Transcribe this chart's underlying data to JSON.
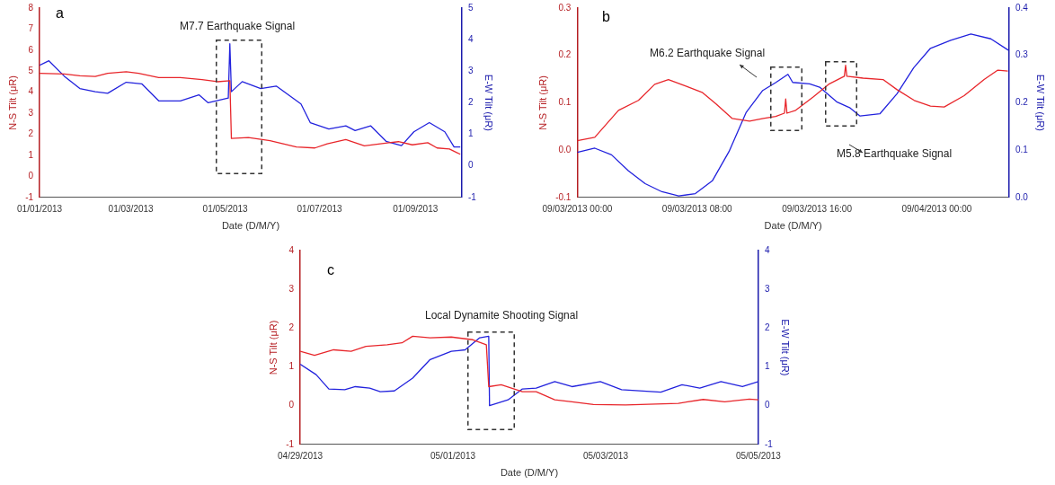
{
  "chart_data": [
    {
      "type": "line",
      "title": "a",
      "xlabel": "Date (D/M/Y)",
      "ylabel": "N-S Tilt (μR)",
      "y2label": "E-W Tilt (μR)",
      "annotations": [
        "M7.7 Earthquake Signal"
      ],
      "grid": false,
      "legend": false,
      "marker": "none",
      "xlim": [
        "2013-01-01",
        "2013-10-01"
      ],
      "xticks": [
        {
          "value": "2013-01-01",
          "label": "01/01/2013"
        },
        {
          "value": "2013-03-01",
          "label": "01/03/2013"
        },
        {
          "value": "2013-05-01",
          "label": "01/05/2013"
        },
        {
          "value": "2013-07-01",
          "label": "01/07/2013"
        },
        {
          "value": "2013-09-01",
          "label": "01/09/2013"
        }
      ],
      "ylim": [
        -1,
        8
      ],
      "yticks": [
        -1,
        0,
        1,
        2,
        3,
        4,
        5,
        6,
        7,
        8
      ],
      "y2lim": [
        -1,
        5
      ],
      "y2ticks": [
        -1,
        0,
        1,
        2,
        3,
        4,
        5
      ],
      "series": [
        {
          "color": "#e8262b",
          "x": [
            "2013-01-01",
            "2013-01-17",
            "2013-01-27",
            "2013-02-06",
            "2013-02-14",
            "2013-02-26",
            "2013-03-06",
            "2013-03-19",
            "2013-04-02",
            "2013-04-16",
            "2013-04-26",
            "2013-05-04",
            "2013-05-05",
            "2013-05-16",
            "2013-05-30",
            "2013-06-16",
            "2013-06-28",
            "2013-07-06",
            "2013-07-18",
            "2013-07-30",
            "2013-08-15",
            "2013-08-21",
            "2013-08-30",
            "2013-09-09",
            "2013-09-15",
            "2013-09-23",
            "2013-09-30"
          ],
          "values": [
            4.9,
            4.87,
            4.78,
            4.75,
            4.9,
            4.97,
            4.9,
            4.7,
            4.7,
            4.6,
            4.5,
            4.55,
            1.8,
            1.85,
            1.7,
            1.4,
            1.35,
            1.55,
            1.75,
            1.45,
            1.6,
            1.65,
            1.5,
            1.6,
            1.35,
            1.3,
            1.05
          ]
        },
        {
          "color": "#2222dd",
          "axis": "y2",
          "x": [
            "2013-01-01",
            "2013-01-07",
            "2013-01-17",
            "2013-01-27",
            "2013-02-06",
            "2013-02-14",
            "2013-02-26",
            "2013-03-08",
            "2013-03-19",
            "2013-04-02",
            "2013-04-14",
            "2013-04-20",
            "2013-05-03",
            "2013-05-04",
            "2013-05-05",
            "2013-05-12",
            "2013-05-24",
            "2013-06-03",
            "2013-06-19",
            "2013-06-25",
            "2013-07-07",
            "2013-07-18",
            "2013-07-24",
            "2013-08-03",
            "2013-08-13",
            "2013-08-23",
            "2013-08-31",
            "2013-09-10",
            "2013-09-20",
            "2013-09-26",
            "2013-09-30"
          ],
          "values": [
            3.19,
            3.33,
            2.84,
            2.45,
            2.35,
            2.3,
            2.65,
            2.6,
            2.06,
            2.06,
            2.25,
            2.0,
            2.15,
            3.87,
            2.35,
            2.67,
            2.45,
            2.53,
            1.96,
            1.37,
            1.17,
            1.27,
            1.12,
            1.27,
            0.78,
            0.64,
            1.08,
            1.37,
            1.08,
            0.6,
            0.6
          ]
        }
      ]
    },
    {
      "type": "line",
      "title": "b",
      "xlabel": "Date (D/M/Y)",
      "ylabel": "N-S Tilt (μR)",
      "y2label": "E-W Tilt (μR)",
      "annotations": [
        "M6.2 Earthquake Signal",
        "M5.8 Earthquake Signal"
      ],
      "grid": false,
      "legend": false,
      "marker": "none",
      "xlim": [
        "2013-09-03T00:00",
        "2013-09-04T04:50"
      ],
      "xticks": [
        {
          "value": "2013-09-03T00:00",
          "label": "09/03/2013 00:00"
        },
        {
          "value": "2013-09-03T08:00",
          "label": "09/03/2013 08:00"
        },
        {
          "value": "2013-09-03T16:00",
          "label": "09/03/2013 16:00"
        },
        {
          "value": "2013-09-04T00:00",
          "label": "09/04/2013 00:00"
        }
      ],
      "ylim": [
        -0.1,
        0.3
      ],
      "yticks": [
        -0.1,
        {
          "value": 0,
          "label": "0.0"
        },
        0.1,
        0.2,
        0.3
      ],
      "y2lim": [
        0,
        0.4
      ],
      "y2ticks": [
        {
          "value": 0,
          "label": "0.0"
        },
        0.1,
        0.2,
        0.3,
        0.4
      ],
      "series": [
        {
          "color": "#e8262b",
          "x": [
            "2013-09-03T00:00",
            "2013-09-03T01:10",
            "2013-09-03T02:45",
            "2013-09-03T04:05",
            "2013-09-03T05:10",
            "2013-09-03T06:05",
            "2013-09-03T07:15",
            "2013-09-03T08:20",
            "2013-09-03T09:15",
            "2013-09-03T10:20",
            "2013-09-03T11:30",
            "2013-09-03T12:25",
            "2013-09-03T13:15",
            "2013-09-03T13:50",
            "2013-09-03T13:55",
            "2013-09-03T14:00",
            "2013-09-03T14:35",
            "2013-09-03T15:45",
            "2013-09-03T16:50",
            "2013-09-03T17:50",
            "2013-09-03T17:55",
            "2013-09-03T18:00",
            "2013-09-03T19:05",
            "2013-09-03T20:25",
            "2013-09-03T21:20",
            "2013-09-03T22:30",
            "2013-09-03T23:35",
            "2013-09-04T00:30",
            "2013-09-04T01:50",
            "2013-09-04T03:10",
            "2013-09-04T04:05",
            "2013-09-04T04:45"
          ],
          "values": [
            0.02,
            0.027,
            0.084,
            0.105,
            0.139,
            0.149,
            0.135,
            0.122,
            0.098,
            0.067,
            0.061,
            0.067,
            0.071,
            0.078,
            0.108,
            0.078,
            0.084,
            0.112,
            0.14,
            0.156,
            0.179,
            0.156,
            0.152,
            0.149,
            0.128,
            0.105,
            0.093,
            0.091,
            0.115,
            0.149,
            0.169,
            0.167
          ]
        },
        {
          "color": "#2222dd",
          "axis": "y2",
          "x": [
            "2013-09-03T00:00",
            "2013-09-03T01:10",
            "2013-09-03T02:17",
            "2013-09-03T03:25",
            "2013-09-03T04:32",
            "2013-09-03T05:39",
            "2013-09-03T06:46",
            "2013-09-03T07:53",
            "2013-09-03T09:01",
            "2013-09-03T10:08",
            "2013-09-03T11:16",
            "2013-09-03T12:23",
            "2013-09-03T13:16",
            "2013-09-03T14:04",
            "2013-09-03T14:23",
            "2013-09-03T15:31",
            "2013-09-03T16:11",
            "2013-09-03T17:19",
            "2013-09-03T18:13",
            "2013-09-03T18:53",
            "2013-09-03T20:13",
            "2013-09-03T21:21",
            "2013-09-03T22:28",
            "2013-09-03T23:35",
            "2013-09-04T00:56",
            "2013-09-04T02:17",
            "2013-09-04T03:37",
            "2013-09-04T04:47"
          ],
          "values": [
            0.095,
            0.104,
            0.09,
            0.056,
            0.029,
            0.012,
            0.003,
            0.008,
            0.035,
            0.097,
            0.179,
            0.226,
            0.243,
            0.26,
            0.243,
            0.24,
            0.233,
            0.202,
            0.189,
            0.172,
            0.177,
            0.219,
            0.274,
            0.315,
            0.332,
            0.345,
            0.335,
            0.311
          ]
        }
      ]
    },
    {
      "type": "line",
      "title": "c",
      "xlabel": "Date (D/M/Y)",
      "ylabel": "N-S Tilt (μR)",
      "y2label": "E-W Tilt (μR)",
      "annotations": [
        "Local Dynamite Shooting Signal"
      ],
      "grid": false,
      "legend": false,
      "marker": "none",
      "xlim": [
        "2013-04-29T00:00",
        "2013-05-05T00:00"
      ],
      "xticks": [
        {
          "value": "2013-04-29T00:00",
          "label": "04/29/2013"
        },
        {
          "value": "2013-05-01T00:00",
          "label": "05/01/2013"
        },
        {
          "value": "2013-05-03T00:00",
          "label": "05/03/2013"
        },
        {
          "value": "2013-05-05T00:00",
          "label": "05/05/2013"
        }
      ],
      "ylim": [
        -1,
        4
      ],
      "yticks": [
        -1,
        0,
        1,
        2,
        3,
        4
      ],
      "y2lim": [
        -1,
        4
      ],
      "y2ticks": [
        -1,
        0,
        1,
        2,
        3,
        4
      ],
      "series": [
        {
          "color": "#e8262b",
          "x": [
            "2013-04-29T00:00",
            "2013-04-29T04:30",
            "2013-04-29T10:30",
            "2013-04-29T16:00",
            "2013-04-29T20:40",
            "2013-04-30T03:20",
            "2013-04-30T08:00",
            "2013-04-30T11:20",
            "2013-04-30T16:50",
            "2013-04-30T23:30",
            "2013-05-01T06:15",
            "2013-05-01T10:30",
            "2013-05-01T11:15",
            "2013-05-01T15:10",
            "2013-05-01T21:50",
            "2013-05-02T02:10",
            "2013-05-02T08:00",
            "2013-05-02T13:25",
            "2013-05-02T20:10",
            "2013-05-03T06:15",
            "2013-05-03T22:50",
            "2013-05-04T06:40",
            "2013-05-04T13:25",
            "2013-05-04T21:10",
            "2013-05-05T00:00"
          ],
          "values": [
            1.4,
            1.3,
            1.44,
            1.4,
            1.53,
            1.57,
            1.62,
            1.79,
            1.75,
            1.77,
            1.7,
            1.57,
            0.49,
            0.54,
            0.36,
            0.36,
            0.15,
            0.1,
            0.03,
            0.02,
            0.06,
            0.16,
            0.1,
            0.17,
            0.15
          ]
        },
        {
          "color": "#2222dd",
          "axis": "y2",
          "x": [
            "2013-04-29T00:00",
            "2013-04-29T05:00",
            "2013-04-29T09:00",
            "2013-04-29T14:00",
            "2013-04-29T17:20",
            "2013-04-29T21:50",
            "2013-04-30T01:10",
            "2013-04-30T05:35",
            "2013-04-30T11:20",
            "2013-04-30T16:50",
            "2013-04-30T23:30",
            "2013-05-01T03:50",
            "2013-05-01T08:25",
            "2013-05-01T11:15",
            "2013-05-01T11:30",
            "2013-05-01T17:20",
            "2013-05-01T21:50",
            "2013-05-02T02:10",
            "2013-05-02T08:00",
            "2013-05-02T13:25",
            "2013-05-02T22:20",
            "2013-05-03T05:00",
            "2013-05-03T17:20",
            "2013-05-04T00:00",
            "2013-05-04T05:35",
            "2013-05-04T12:15",
            "2013-05-04T19:00",
            "2013-05-05T00:00"
          ],
          "values": [
            1.07,
            0.8,
            0.43,
            0.41,
            0.49,
            0.45,
            0.36,
            0.38,
            0.71,
            1.19,
            1.4,
            1.44,
            1.75,
            1.79,
            0.0,
            0.15,
            0.43,
            0.45,
            0.62,
            0.49,
            0.62,
            0.41,
            0.35,
            0.54,
            0.45,
            0.62,
            0.49,
            0.62
          ]
        }
      ]
    }
  ]
}
